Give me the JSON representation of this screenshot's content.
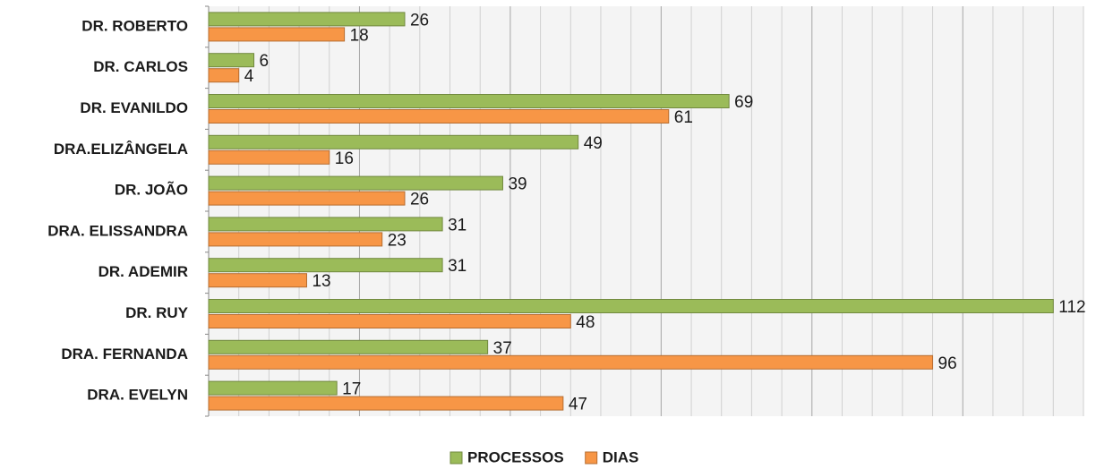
{
  "chart_data": {
    "type": "barh",
    "categories": [
      "DR. ROBERTO",
      "DR. CARLOS",
      "DR. EVANILDO",
      "DRA.ELIZÂNGELA",
      "DR. JOÃO",
      "DRA. ELISSANDRA",
      "DR. ADEMIR",
      "DR. RUY",
      "DRA. FERNANDA",
      "DRA. EVELYN"
    ],
    "series": [
      {
        "name": "PROCESSOS",
        "color": "#9bbb59",
        "values": [
          26,
          6,
          69,
          49,
          39,
          31,
          31,
          112,
          37,
          17
        ]
      },
      {
        "name": "DIAS",
        "color": "#f79646",
        "values": [
          18,
          4,
          61,
          16,
          26,
          23,
          13,
          48,
          96,
          47
        ]
      }
    ],
    "xlim": [
      0,
      116
    ],
    "xticks": [
      0,
      4,
      8,
      12,
      16,
      20,
      24,
      28,
      32,
      36,
      40,
      44,
      48,
      52,
      56,
      60,
      64,
      68,
      72,
      76,
      80,
      84,
      88,
      92,
      96,
      100,
      104,
      108,
      112,
      116
    ],
    "grid": true,
    "legend": "bottom"
  }
}
